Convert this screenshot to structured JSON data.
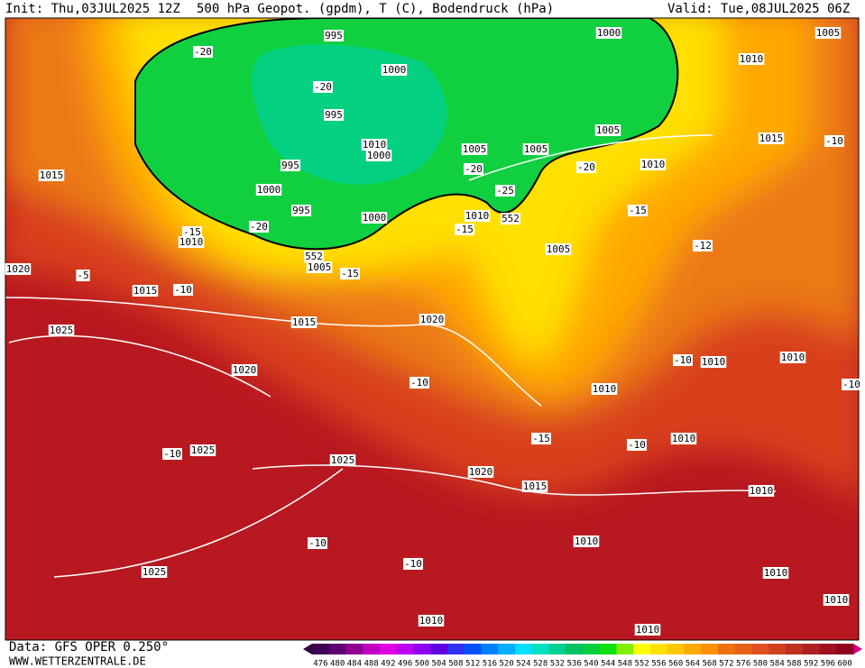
{
  "header": {
    "init": "Init: Thu,03JUL2025 12Z",
    "title": "500 hPa Geopot. (gpdm), T (C), Bodendruck (hPa)",
    "valid": "Valid: Tue,08JUL2025 06Z"
  },
  "footer": {
    "source": "Data: GFS OPER 0.250°",
    "site": "WWW.WETTERZENTRALE.DE"
  },
  "colorbar": {
    "labels": [
      476,
      480,
      484,
      488,
      492,
      496,
      500,
      504,
      508,
      512,
      516,
      520,
      524,
      528,
      532,
      536,
      540,
      544,
      548,
      552,
      556,
      560,
      564,
      568,
      572,
      576,
      580,
      584,
      588,
      592,
      596,
      600
    ],
    "colors": [
      "#400050",
      "#600070",
      "#900090",
      "#c000c0",
      "#e000e0",
      "#c000f0",
      "#9000f0",
      "#6000e0",
      "#3030f0",
      "#0050ff",
      "#0080ff",
      "#00b0ff",
      "#00e0ff",
      "#00e0c0",
      "#00d090",
      "#00c060",
      "#00d040",
      "#10e010",
      "#80f000",
      "#ffff00",
      "#ffe000",
      "#ffc800",
      "#ffaa00",
      "#ff9000",
      "#f07010",
      "#e86018",
      "#e05020",
      "#d04020",
      "#c03020",
      "#b02020",
      "#a01020",
      "#900020"
    ]
  },
  "isobar_labels": [
    "1000",
    "1005",
    "1010",
    "1000",
    "995",
    "1010",
    "1000",
    "995",
    "1000",
    "995",
    "1000",
    "1005",
    "1005",
    "1005",
    "1010",
    "1015",
    "1015",
    "1010",
    "552",
    "1005",
    "1010",
    "1020",
    "1015",
    "552",
    "1005",
    "1015",
    "1020",
    "1025",
    "1020",
    "1010",
    "1010",
    "1010",
    "1010",
    "1025",
    "1025",
    "1020",
    "1015",
    "1010",
    "1010",
    "1025",
    "1010",
    "1010",
    "1010",
    "1010",
    "995"
  ],
  "temperature_labels": [
    "-20",
    "-20",
    "-20",
    "-25",
    "-20",
    "-15",
    "-15",
    "-20",
    "-15",
    "-12",
    "-10",
    "-15",
    "-5",
    "-10",
    "-10",
    "-10",
    "-15",
    "-10",
    "-10",
    "-10",
    "-10",
    "-10"
  ]
}
